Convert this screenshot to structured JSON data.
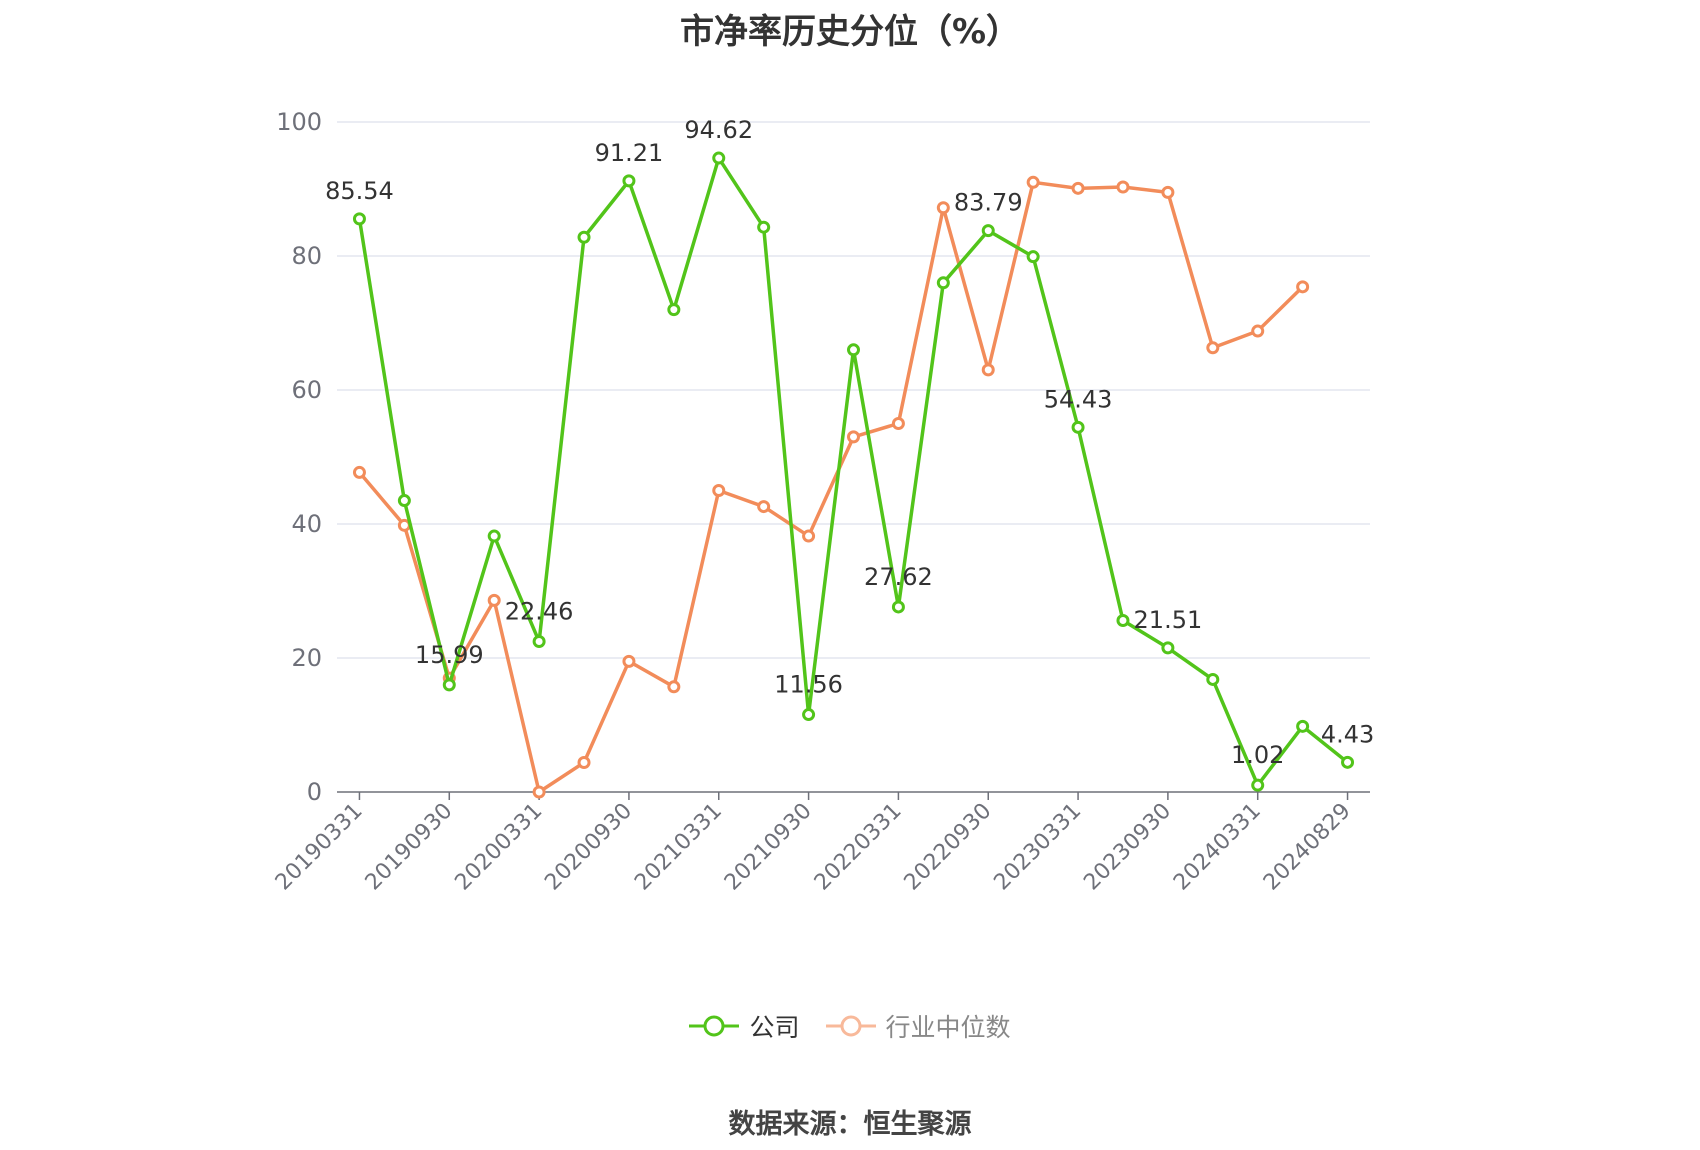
{
  "chart_data": {
    "type": "line",
    "title": "市净率历史分位（%）",
    "ylim": [
      0,
      100
    ],
    "yticks": [
      0,
      20,
      40,
      60,
      80,
      100
    ],
    "xtick_labels": [
      "20190331",
      "20190930",
      "20200331",
      "20200930",
      "20210331",
      "20210930",
      "20220331",
      "20220930",
      "20230331",
      "20230930",
      "20240331",
      "20240829"
    ],
    "grid": true,
    "legend_position": "bottom",
    "series": [
      {
        "name": "公司",
        "color": "#52c41a",
        "values": [
          85.54,
          43.5,
          15.99,
          38.2,
          22.46,
          82.8,
          91.21,
          72.0,
          94.62,
          84.3,
          11.56,
          66.0,
          27.62,
          76.0,
          83.79,
          79.9,
          54.43,
          25.6,
          21.51,
          16.8,
          1.02,
          9.8,
          4.43
        ],
        "labels": [
          "85.54",
          "",
          "15.99",
          "",
          "22.46",
          "",
          "91.21",
          "",
          "94.62",
          "",
          "11.56",
          "",
          "27.62",
          "",
          "83.79",
          "",
          "54.43",
          "",
          "21.51",
          "",
          "1.02",
          "",
          "4.43"
        ]
      },
      {
        "name": "行业中位数",
        "color": "#f28c5a",
        "values": [
          47.7,
          39.8,
          17.0,
          28.6,
          0.0,
          4.4,
          19.5,
          15.7,
          45.0,
          42.6,
          38.2,
          53.0,
          55.0,
          87.2,
          63.0,
          91.0,
          90.1,
          90.3,
          89.5,
          66.3,
          68.8,
          75.4,
          null
        ]
      }
    ]
  },
  "source": "数据来源：恒生聚源"
}
